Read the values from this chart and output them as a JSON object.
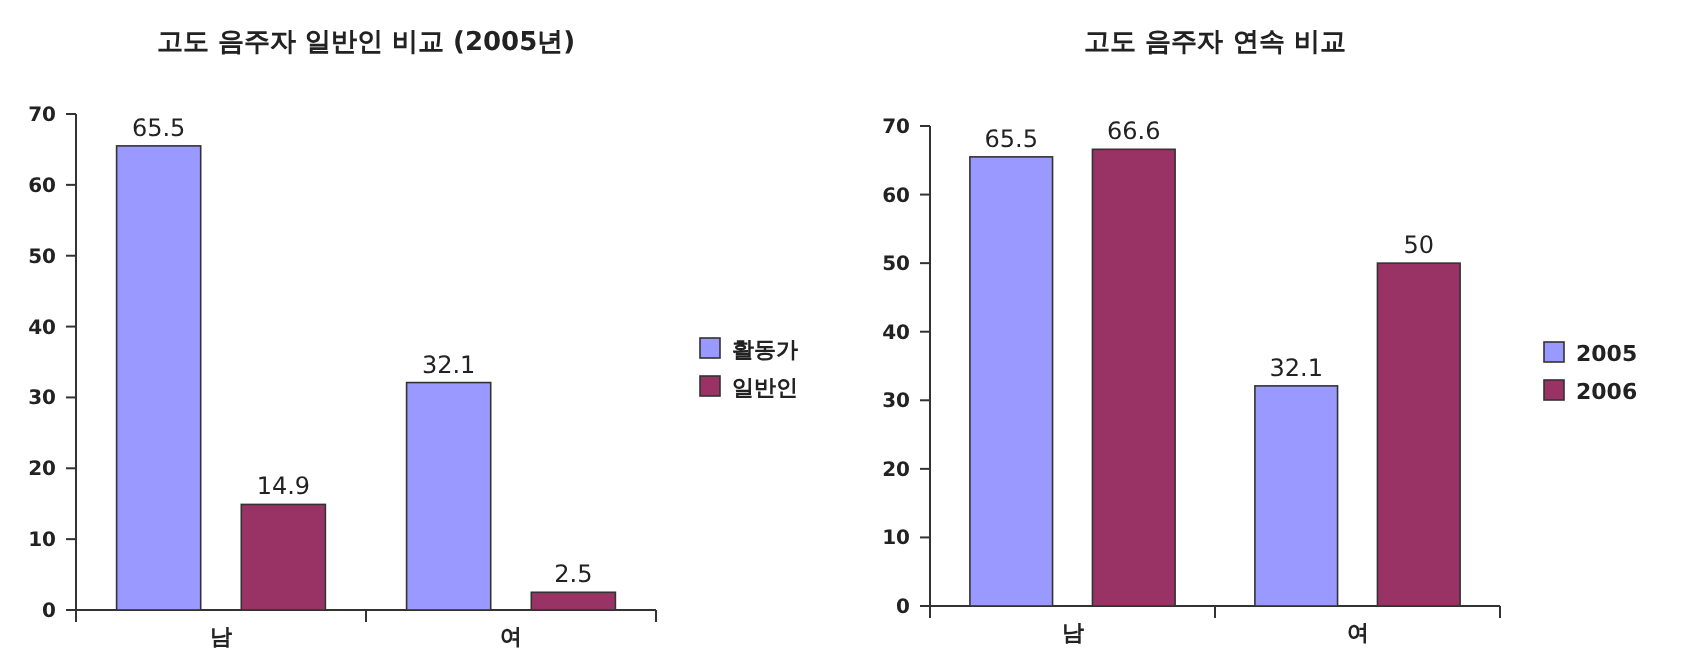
{
  "chart_data": [
    {
      "type": "bar",
      "title": "고도 음주자 일반인 비교 (2005년)",
      "categories": [
        "남",
        "여"
      ],
      "series": [
        {
          "name": "활동가",
          "color": "#9999ff",
          "values": [
            65.5,
            32.1
          ]
        },
        {
          "name": "일반인",
          "color": "#993366",
          "values": [
            14.9,
            2.5
          ]
        }
      ],
      "ylim": [
        0,
        70
      ],
      "yticks": [
        0,
        10,
        20,
        30,
        40,
        50,
        60,
        70
      ],
      "data_labels": true,
      "legend": "right"
    },
    {
      "type": "bar",
      "title": "고도 음주자 연속 비교",
      "categories": [
        "남",
        "여"
      ],
      "series": [
        {
          "name": "2005",
          "color": "#9999ff",
          "values": [
            65.5,
            32.1
          ]
        },
        {
          "name": "2006",
          "color": "#993366",
          "values": [
            66.6,
            50
          ]
        }
      ],
      "ylim": [
        0,
        70
      ],
      "yticks": [
        0,
        10,
        20,
        30,
        40,
        50,
        60,
        70
      ],
      "data_labels": true,
      "legend": "right"
    }
  ]
}
